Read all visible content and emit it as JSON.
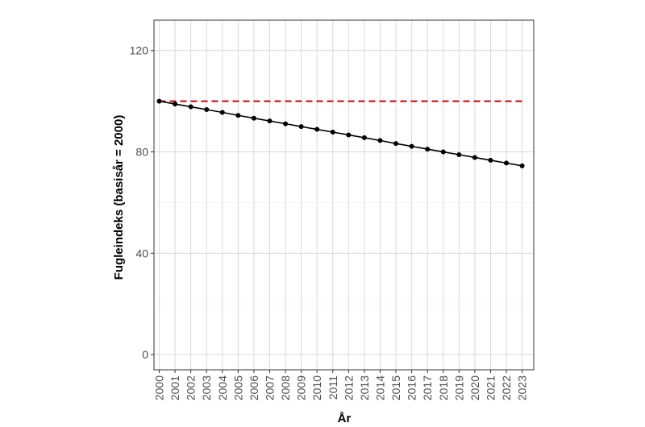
{
  "chart_data": {
    "type": "line",
    "title": "",
    "xlabel": "År",
    "ylabel": "Fugleindeks (basisår = 2000)",
    "x": [
      "2000",
      "2001",
      "2002",
      "2003",
      "2004",
      "2005",
      "2006",
      "2007",
      "2008",
      "2009",
      "2010",
      "2011",
      "2012",
      "2013",
      "2014",
      "2015",
      "2016",
      "2017",
      "2018",
      "2019",
      "2020",
      "2021",
      "2022",
      "2023"
    ],
    "series": [
      {
        "values": [
          100,
          98.9,
          97.8,
          96.7,
          95.6,
          94.4,
          93.3,
          92.2,
          91.1,
          90.0,
          88.9,
          87.8,
          86.7,
          85.6,
          84.5,
          83.3,
          82.2,
          81.1,
          80.0,
          78.9,
          77.8,
          76.7,
          75.6,
          74.5
        ],
        "color": "#000000"
      }
    ],
    "reference_line": {
      "y": 100,
      "color": "#cc0000",
      "style": "dashed"
    },
    "ylim": [
      -6,
      132
    ],
    "yticks": [
      0,
      40,
      80,
      120
    ],
    "grid": true,
    "x_tick_rotation": "vertical"
  }
}
